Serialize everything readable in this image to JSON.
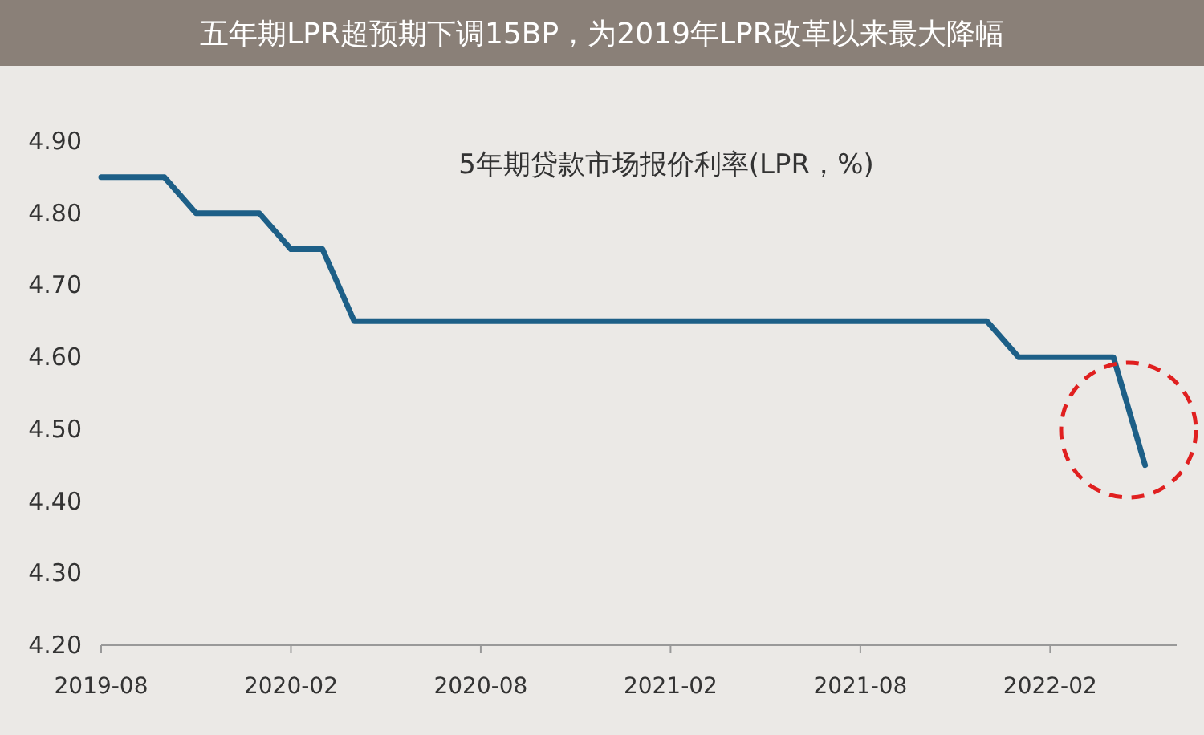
{
  "chart_data": {
    "type": "line",
    "title": "五年期LPR超预期下调15BP，为2019年LPR改革以来最大降幅",
    "subtitle": "5年期贷款市场报价利率(LPR，%)",
    "x": [
      "2019-08",
      "2019-09",
      "2019-10",
      "2019-11",
      "2019-12",
      "2020-01",
      "2020-02",
      "2020-03",
      "2020-04",
      "2020-05",
      "2020-06",
      "2020-07",
      "2020-08",
      "2020-09",
      "2020-10",
      "2020-11",
      "2020-12",
      "2021-01",
      "2021-02",
      "2021-03",
      "2021-04",
      "2021-05",
      "2021-06",
      "2021-07",
      "2021-08",
      "2021-09",
      "2021-10",
      "2021-11",
      "2021-12",
      "2022-01",
      "2022-02",
      "2022-03",
      "2022-04",
      "2022-05"
    ],
    "series": [
      {
        "color": "#1d5f87",
        "values": [
          4.85,
          4.85,
          4.85,
          4.8,
          4.8,
          4.8,
          4.75,
          4.75,
          4.65,
          4.65,
          4.65,
          4.65,
          4.65,
          4.65,
          4.65,
          4.65,
          4.65,
          4.65,
          4.65,
          4.65,
          4.65,
          4.65,
          4.65,
          4.65,
          4.65,
          4.65,
          4.65,
          4.65,
          4.65,
          4.6,
          4.6,
          4.6,
          4.6,
          4.45
        ]
      }
    ],
    "xlim": [
      "2019-08",
      "2022-06"
    ],
    "xticks": [
      "2019-08",
      "2020-02",
      "2020-08",
      "2021-02",
      "2021-08",
      "2022-02"
    ],
    "ylim": [
      4.2,
      4.9
    ],
    "yticks": [
      {
        "value": 4.2,
        "label": "4.20"
      },
      {
        "value": 4.3,
        "label": "4.30"
      },
      {
        "value": 4.4,
        "label": "4.40"
      },
      {
        "value": 4.5,
        "label": "4.50"
      },
      {
        "value": 4.6,
        "label": "4.60"
      },
      {
        "value": 4.7,
        "label": "4.70"
      },
      {
        "value": 4.8,
        "label": "4.80"
      },
      {
        "value": 4.9,
        "label": "4.90"
      }
    ],
    "grid": false,
    "marker": "none",
    "line_style": "solid"
  }
}
